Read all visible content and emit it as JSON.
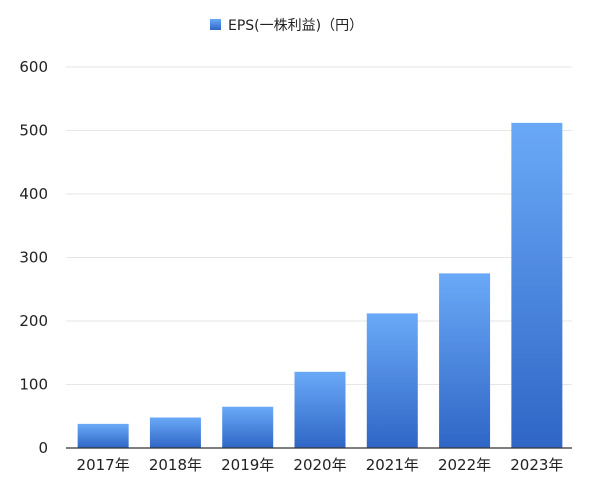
{
  "chart_data": {
    "type": "bar",
    "categories": [
      "2017年",
      "2018年",
      "2019年",
      "2020年",
      "2021年",
      "2022年",
      "2023年"
    ],
    "series": [
      {
        "name": "EPS(一株利益)（円）",
        "values": [
          38,
          48,
          65,
          120,
          212,
          275,
          512
        ]
      }
    ],
    "ylim": [
      0,
      600
    ],
    "yticks": [
      0,
      100,
      200,
      300,
      400,
      500,
      600
    ],
    "grid": true,
    "legend_position": "top-center",
    "colors": {
      "bar_top": "#6aa9f7",
      "bar_bottom": "#2f66c6",
      "legend_swatch": "#3a78db"
    }
  }
}
